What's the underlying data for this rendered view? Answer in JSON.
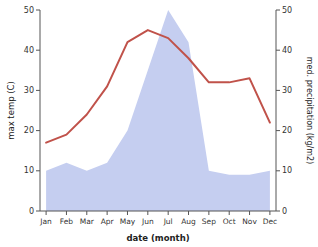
{
  "chart_data": {
    "type": "line",
    "categories": [
      "Jan",
      "Feb",
      "Mar",
      "Apr",
      "May",
      "Jun",
      "Jul",
      "Aug",
      "Sep",
      "Oct",
      "Nov",
      "Dec"
    ],
    "series": [
      {
        "type": "area",
        "axis": "y2",
        "color": "#c5cef0",
        "values": [
          10,
          12,
          10,
          12,
          20,
          35,
          50,
          42,
          10,
          9,
          9,
          10
        ]
      },
      {
        "type": "line",
        "color": "#c0524a",
        "values": [
          17,
          19,
          24,
          31,
          42,
          45,
          43,
          38,
          32,
          32,
          33,
          22
        ]
      }
    ],
    "x_label": "date (month)",
    "y_label": "max temp (C)",
    "y2_label": "med. precipitation (kg/m2)",
    "ylim": [
      0,
      50
    ],
    "yticks": [
      0,
      10,
      20,
      30,
      40,
      50
    ],
    "y2lim": [
      0,
      50
    ],
    "y2ticks": [
      0,
      10,
      20,
      30,
      40,
      50
    ]
  }
}
